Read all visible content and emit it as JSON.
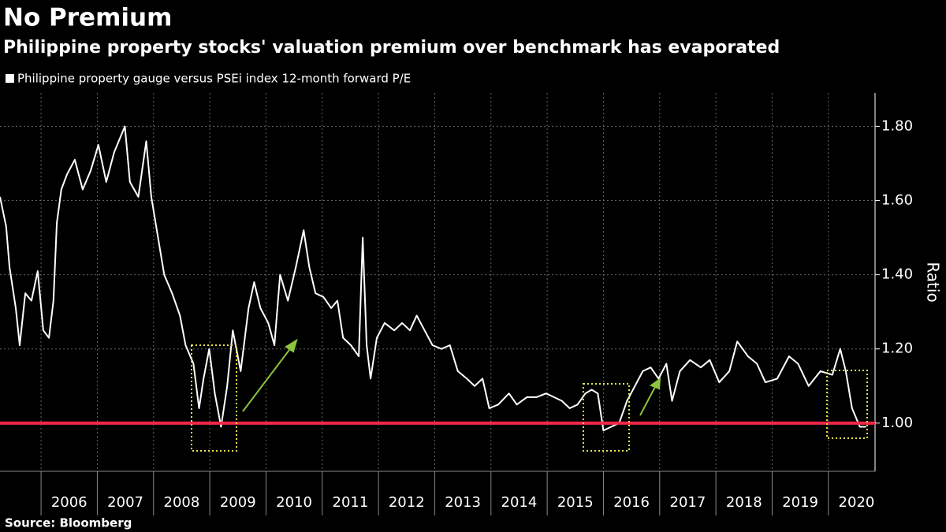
{
  "chart_data": {
    "type": "line",
    "title": "No Premium",
    "subtitle": "Philippine property stocks' valuation premium over benchmark has evaporated",
    "y_axis_label": "Ratio",
    "source": "Source: Bloomberg",
    "x": [
      2005.27,
      2005.38,
      2005.44,
      2005.55,
      2005.62,
      2005.72,
      2005.83,
      2005.94,
      2006.04,
      2006.14,
      2006.22,
      2006.28,
      2006.36,
      2006.46,
      2006.6,
      2006.74,
      2006.88,
      2007.02,
      2007.16,
      2007.3,
      2007.49,
      2007.58,
      2007.73,
      2007.87,
      2007.96,
      2008.08,
      2008.19,
      2008.33,
      2008.47,
      2008.57,
      2008.71,
      2008.81,
      2008.89,
      2008.99,
      2009.09,
      2009.2,
      2009.31,
      2009.41,
      2009.55,
      2009.69,
      2009.79,
      2009.9,
      2010.04,
      2010.15,
      2010.25,
      2010.39,
      2010.53,
      2010.67,
      2010.77,
      2010.88,
      2011.02,
      2011.16,
      2011.27,
      2011.37,
      2011.51,
      2011.65,
      2011.72,
      2011.79,
      2011.86,
      2011.97,
      2012.11,
      2012.28,
      2012.42,
      2012.56,
      2012.68,
      2012.82,
      2012.96,
      2013.12,
      2013.27,
      2013.41,
      2013.57,
      2013.71,
      2013.85,
      2013.97,
      2014.13,
      2014.32,
      2014.46,
      2014.64,
      2014.81,
      2014.98,
      2015.12,
      2015.26,
      2015.4,
      2015.54,
      2015.68,
      2015.79,
      2015.9,
      2016.0,
      2016.14,
      2016.28,
      2016.42,
      2016.56,
      2016.7,
      2016.84,
      2016.98,
      2017.12,
      2017.22,
      2017.36,
      2017.54,
      2017.73,
      2017.89,
      2018.06,
      2018.24,
      2018.38,
      2018.57,
      2018.73,
      2018.88,
      2019.09,
      2019.3,
      2019.46,
      2019.65,
      2019.86,
      2020.07,
      2020.21,
      2020.31,
      2020.42,
      2020.56,
      2020.67
    ],
    "series": [
      {
        "name": "Philippine property gauge versus PSEi index 12-month forward P/E",
        "color": "#ffffff",
        "values": [
          1.61,
          1.53,
          1.42,
          1.31,
          1.21,
          1.35,
          1.33,
          1.41,
          1.25,
          1.23,
          1.33,
          1.54,
          1.63,
          1.67,
          1.71,
          1.63,
          1.68,
          1.75,
          1.65,
          1.73,
          1.8,
          1.65,
          1.61,
          1.76,
          1.61,
          1.5,
          1.4,
          1.35,
          1.29,
          1.21,
          1.16,
          1.04,
          1.12,
          1.2,
          1.08,
          0.99,
          1.1,
          1.25,
          1.14,
          1.31,
          1.38,
          1.31,
          1.27,
          1.21,
          1.4,
          1.33,
          1.42,
          1.52,
          1.42,
          1.35,
          1.34,
          1.31,
          1.33,
          1.23,
          1.21,
          1.18,
          1.5,
          1.21,
          1.12,
          1.23,
          1.27,
          1.25,
          1.27,
          1.25,
          1.29,
          1.25,
          1.21,
          1.2,
          1.21,
          1.14,
          1.12,
          1.1,
          1.12,
          1.04,
          1.05,
          1.08,
          1.05,
          1.07,
          1.07,
          1.08,
          1.07,
          1.06,
          1.04,
          1.05,
          1.08,
          1.09,
          1.08,
          0.98,
          0.99,
          1.0,
          1.06,
          1.1,
          1.14,
          1.15,
          1.12,
          1.16,
          1.06,
          1.14,
          1.17,
          1.15,
          1.17,
          1.11,
          1.14,
          1.22,
          1.18,
          1.16,
          1.11,
          1.12,
          1.18,
          1.16,
          1.1,
          1.14,
          1.13,
          1.2,
          1.14,
          1.04,
          0.99,
          0.99
        ]
      }
    ],
    "xlim": [
      2005.27,
      2020.83
    ],
    "xticks": [
      2006,
      2007,
      2008,
      2009,
      2010,
      2011,
      2012,
      2013,
      2014,
      2015,
      2016,
      2017,
      2018,
      2019,
      2020
    ],
    "ylim": [
      0.87,
      1.89
    ],
    "yticks": [
      {
        "value": 1,
        "label": "1.00"
      },
      {
        "value": 1.2,
        "label": "1.20"
      },
      {
        "value": 1.4,
        "label": "1.40"
      },
      {
        "value": 1.6,
        "label": "1.60"
      },
      {
        "value": 1.8,
        "label": "1.80"
      }
    ],
    "grid": true,
    "reference_line": {
      "value": 1,
      "color": "#f0284a"
    }
  }
}
